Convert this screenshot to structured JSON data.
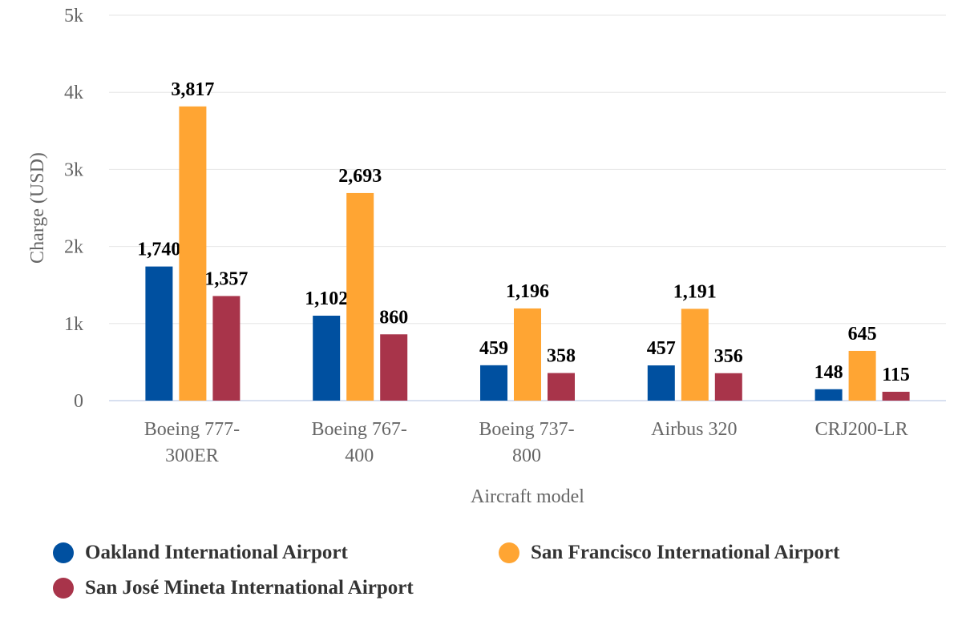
{
  "chart_data": {
    "type": "bar",
    "xlabel": "Aircraft model",
    "ylabel": "Charge (USD)",
    "ylim": [
      0,
      5000
    ],
    "yticks": [
      {
        "value": 0,
        "label": "0"
      },
      {
        "value": 1000,
        "label": "1k"
      },
      {
        "value": 2000,
        "label": "2k"
      },
      {
        "value": 3000,
        "label": "3k"
      },
      {
        "value": 4000,
        "label": "4k"
      },
      {
        "value": 5000,
        "label": "5k"
      }
    ],
    "categories": [
      [
        "Boeing 777-",
        "300ER"
      ],
      [
        "Boeing 767-",
        "400"
      ],
      [
        "Boeing 737-",
        "800"
      ],
      [
        "Airbus 320"
      ],
      [
        "CRJ200-LR"
      ]
    ],
    "series": [
      {
        "name": "Oakland International Airport",
        "color": "#0050a0",
        "values": [
          1740,
          1102,
          459,
          457,
          148
        ],
        "labels": [
          "1,740",
          "1,102",
          "459",
          "457",
          "148"
        ]
      },
      {
        "name": "San Francisco International Airport",
        "color": "#ffa533",
        "values": [
          3817,
          2693,
          1196,
          1191,
          645
        ],
        "labels": [
          "3,817",
          "2,693",
          "1,196",
          "1,191",
          "645"
        ]
      },
      {
        "name": "San José Mineta International Airport",
        "color": "#a8344a",
        "values": [
          1357,
          860,
          358,
          356,
          115
        ],
        "labels": [
          "1,357",
          "860",
          "358",
          "356",
          "115"
        ]
      }
    ],
    "grid": true,
    "legend_position": "bottom"
  }
}
